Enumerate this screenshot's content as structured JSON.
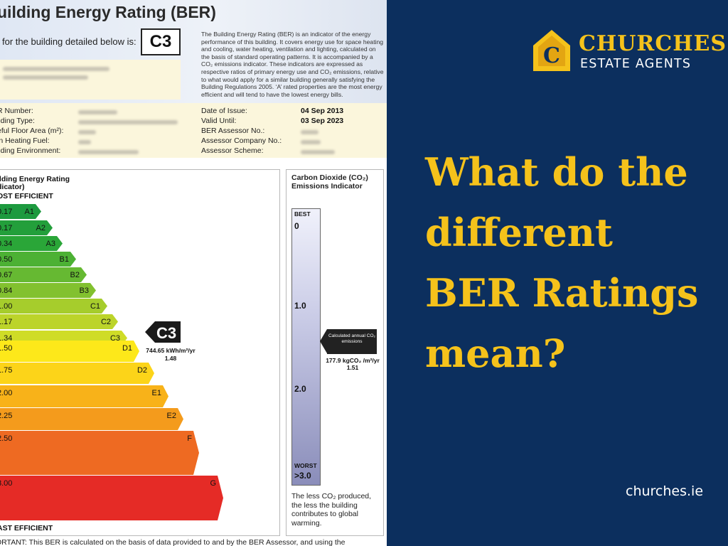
{
  "certificate": {
    "title": "uilding Energy Rating (BER)",
    "rated_text": "for the building detailed below is:",
    "rating": "C3",
    "description": "The Building Energy Rating (BER) is an indicator of the energy performance of this building. It covers energy use for space heating and cooling, water heating, ventilation and lighting, calculated on the basis of standard operating patterns. It is accompanied by a CO₂ emissions indicator. These indicators are expressed as respective ratios of primary energy use and CO₂ emissions, relative to what would apply for a similar building generally satisfying the Building Regulations 2005. ‘A’ rated properties are the most energy efficient and will tend to have the lowest energy bills.",
    "left_labels": [
      "R Number:",
      "ilding Type:",
      "eful Floor Area (m²):",
      "in Heating Fuel:",
      "ilding Environment:"
    ],
    "right_labels": [
      "Date of Issue:",
      "Valid Until:",
      "BER Assessor No.:",
      "Assessor Company No.:",
      "Assessor Scheme:"
    ],
    "right_values": [
      "04 Sep 2013",
      "03 Sep 2023",
      "",
      "",
      ""
    ],
    "ber_heading_1": "ilding Energy Rating",
    "ber_heading_2": "dicator)",
    "most_efficient": "OST EFFICIENT",
    "least_efficient": "AST EFFICIENT",
    "bands": [
      {
        "value": "0.17",
        "label": "A1",
        "color": "#1d9a3f"
      },
      {
        "value": "0.17",
        "label": "A2",
        "color": "#239f3b"
      },
      {
        "value": "0.34",
        "label": "A3",
        "color": "#2aa638"
      },
      {
        "value": "0.50",
        "label": "B1",
        "color": "#4cb134"
      },
      {
        "value": "0.67",
        "label": "B2",
        "color": "#66b932"
      },
      {
        "value": "0.84",
        "label": "B3",
        "color": "#82c12f"
      },
      {
        "value": "1.00",
        "label": "C1",
        "color": "#a6cd2c"
      },
      {
        "value": "1.17",
        "label": "C2",
        "color": "#bcd42a"
      },
      {
        "value": "1.34",
        "label": "C3",
        "color": "#cfdc27"
      },
      {
        "value": "1.50",
        "label": "D1",
        "color": "#fde81a"
      },
      {
        "value": "1.75",
        "label": "D2",
        "color": "#fcd419"
      },
      {
        "value": "2.00",
        "label": "E1",
        "color": "#f8b219"
      },
      {
        "value": "2.25",
        "label": "E2",
        "color": "#f49b1c"
      },
      {
        "value": "2.50",
        "label": "F",
        "color": "#ee6a22"
      },
      {
        "value": "3.00",
        "label": "G",
        "color": "#e52b26"
      }
    ],
    "indicator_rating": "C3",
    "indicator_value": "744.65 kWh/m²/yr",
    "indicator_ratio": "1.48",
    "co2_title_1": "Carbon Dioxide (CO₂)",
    "co2_title_2": "Emissions Indicator",
    "co2_best": "BEST",
    "co2_ticks": [
      "0",
      "1.0",
      "2.0"
    ],
    "co2_worst": "WORST",
    "co2_max": ">3.0",
    "co2_arrow_text": "Calculated annual CO₂ emissions",
    "co2_value": "177.9 kgCO₂ /m²/yr",
    "co2_ratio": "1.51",
    "co2_note": "The less CO₂ produced, the less the building contributes to global warming.",
    "footer": "ORTANT: This BER is calculated on the basis of data provided to and by the BER Assessor, and using the"
  },
  "brand": {
    "name": "CHURCHES",
    "subtitle": "ESTATE AGENTS",
    "logo_letter": "C",
    "color_gold": "#f5c21b",
    "color_navy": "#0c2f5e"
  },
  "headline": {
    "lines": [
      "What do the",
      "different",
      "BER Ratings",
      "mean?"
    ]
  },
  "website": "churches.ie"
}
